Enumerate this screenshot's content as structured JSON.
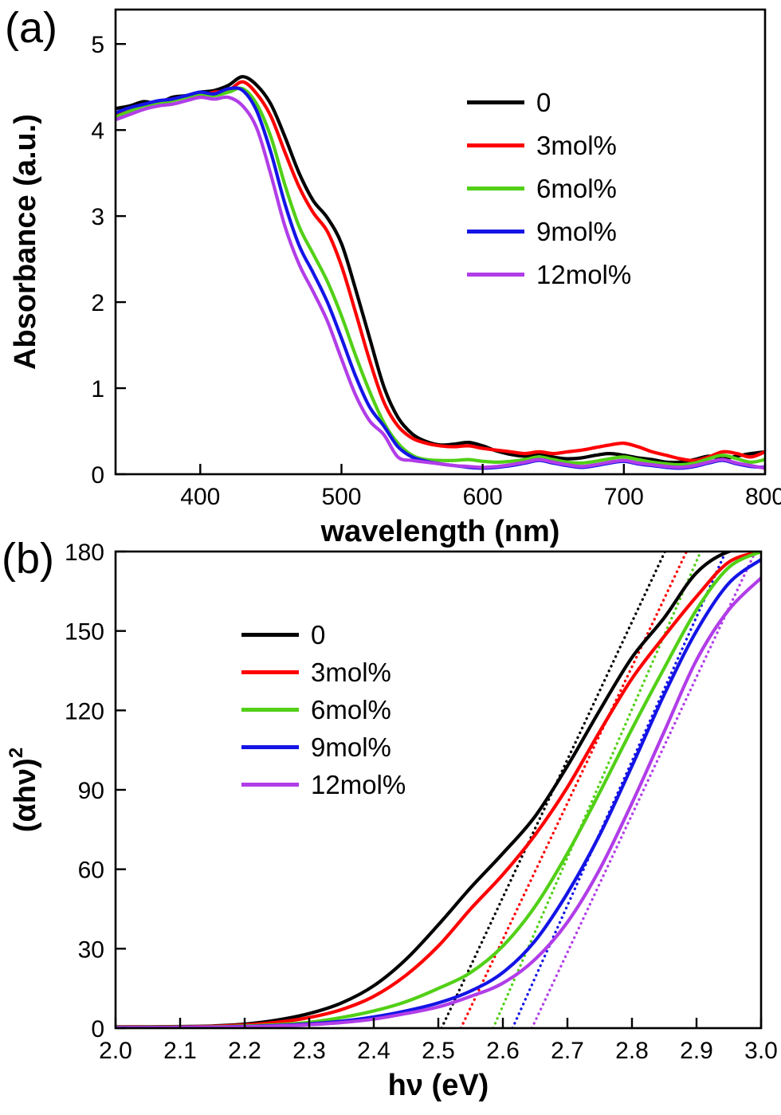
{
  "figure": {
    "panels": [
      {
        "label": "(a)"
      },
      {
        "label": "(b)"
      }
    ]
  },
  "chart_data": [
    {
      "type": "line",
      "panel": "a",
      "title": "",
      "xlabel": "wavelength (nm)",
      "ylabel": "Absorbance (a.u.)",
      "xlim": [
        340,
        800
      ],
      "ylim": [
        0,
        5.4
      ],
      "grid": false,
      "legend_position": "upper-right",
      "xticks": [
        400,
        500,
        600,
        700,
        800
      ],
      "xtick_labels": [
        "400",
        "500",
        "600",
        "700",
        "800"
      ],
      "yticks": [
        0,
        1,
        2,
        3,
        4,
        5
      ],
      "ytick_labels": [
        "0",
        "1",
        "2",
        "3",
        "4",
        "5"
      ],
      "x": [
        340,
        350,
        360,
        370,
        380,
        390,
        400,
        410,
        420,
        430,
        440,
        450,
        460,
        470,
        480,
        490,
        500,
        510,
        520,
        530,
        540,
        550,
        560,
        570,
        580,
        590,
        600,
        610,
        620,
        630,
        640,
        650,
        660,
        670,
        680,
        690,
        700,
        710,
        720,
        730,
        740,
        750,
        760,
        770,
        780,
        790,
        800
      ],
      "series": [
        {
          "name": "0",
          "color": "#000000",
          "y": [
            4.25,
            4.28,
            4.33,
            4.31,
            4.38,
            4.4,
            4.44,
            4.46,
            4.52,
            4.62,
            4.52,
            4.3,
            3.92,
            3.5,
            3.18,
            2.98,
            2.68,
            2.15,
            1.58,
            1.02,
            0.66,
            0.47,
            0.38,
            0.34,
            0.35,
            0.37,
            0.33,
            0.27,
            0.23,
            0.21,
            0.24,
            0.2,
            0.18,
            0.19,
            0.22,
            0.24,
            0.22,
            0.19,
            0.17,
            0.14,
            0.14,
            0.17,
            0.21,
            0.18,
            0.21,
            0.24,
            0.26
          ]
        },
        {
          "name": "3mol%",
          "color": "#ff0000",
          "y": [
            4.18,
            4.24,
            4.3,
            4.28,
            4.35,
            4.38,
            4.4,
            4.44,
            4.46,
            4.56,
            4.42,
            4.16,
            3.74,
            3.34,
            3.04,
            2.82,
            2.42,
            1.88,
            1.32,
            0.84,
            0.56,
            0.42,
            0.36,
            0.33,
            0.32,
            0.33,
            0.3,
            0.28,
            0.26,
            0.24,
            0.26,
            0.24,
            0.26,
            0.28,
            0.31,
            0.34,
            0.36,
            0.32,
            0.26,
            0.22,
            0.18,
            0.16,
            0.2,
            0.26,
            0.24,
            0.2,
            0.26
          ]
        },
        {
          "name": "6mol%",
          "color": "#52d017",
          "y": [
            4.15,
            4.22,
            4.28,
            4.3,
            4.34,
            4.38,
            4.42,
            4.4,
            4.44,
            4.48,
            4.3,
            3.92,
            3.36,
            2.88,
            2.56,
            2.24,
            1.84,
            1.38,
            0.96,
            0.6,
            0.36,
            0.22,
            0.17,
            0.16,
            0.16,
            0.17,
            0.15,
            0.14,
            0.15,
            0.17,
            0.2,
            0.17,
            0.14,
            0.13,
            0.15,
            0.18,
            0.2,
            0.17,
            0.14,
            0.12,
            0.11,
            0.13,
            0.18,
            0.22,
            0.18,
            0.14,
            0.17
          ]
        },
        {
          "name": "9mol%",
          "color": "#1414e6",
          "y": [
            4.2,
            4.26,
            4.3,
            4.34,
            4.36,
            4.4,
            4.44,
            4.42,
            4.48,
            4.46,
            4.22,
            3.74,
            3.14,
            2.66,
            2.34,
            2.0,
            1.58,
            1.14,
            0.78,
            0.56,
            0.32,
            0.2,
            0.15,
            0.12,
            0.1,
            0.08,
            0.07,
            0.08,
            0.1,
            0.13,
            0.16,
            0.13,
            0.1,
            0.08,
            0.1,
            0.13,
            0.15,
            0.12,
            0.1,
            0.08,
            0.07,
            0.09,
            0.13,
            0.16,
            0.12,
            0.09,
            0.08
          ]
        },
        {
          "name": "12mol%",
          "color": "#b13de8",
          "y": [
            4.12,
            4.18,
            4.24,
            4.28,
            4.3,
            4.34,
            4.38,
            4.36,
            4.38,
            4.28,
            4.02,
            3.48,
            2.88,
            2.44,
            2.12,
            1.78,
            1.34,
            0.92,
            0.62,
            0.46,
            0.2,
            0.16,
            0.14,
            0.12,
            0.1,
            0.09,
            0.08,
            0.09,
            0.11,
            0.14,
            0.17,
            0.14,
            0.11,
            0.09,
            0.11,
            0.14,
            0.16,
            0.13,
            0.11,
            0.09,
            0.08,
            0.1,
            0.14,
            0.17,
            0.13,
            0.1,
            0.07
          ]
        }
      ]
    },
    {
      "type": "line",
      "panel": "b",
      "title": "",
      "xlabel": "hν (eV)",
      "ylabel": "(αhν)",
      "ylabel_sup": "2",
      "xlim": [
        2.0,
        3.0
      ],
      "ylim": [
        0,
        180
      ],
      "grid": false,
      "legend_position": "upper-left",
      "xticks": [
        2.0,
        2.1,
        2.2,
        2.3,
        2.4,
        2.5,
        2.6,
        2.7,
        2.8,
        2.9,
        3.0
      ],
      "xtick_labels": [
        "2.0",
        "2.1",
        "2.2",
        "2.3",
        "2.4",
        "2.5",
        "2.6",
        "2.7",
        "2.8",
        "2.9",
        "3.0"
      ],
      "yticks": [
        0,
        30,
        60,
        90,
        120,
        150,
        180
      ],
      "ytick_labels": [
        "0",
        "30",
        "60",
        "90",
        "120",
        "150",
        "180"
      ],
      "x": [
        2.0,
        2.05,
        2.1,
        2.15,
        2.2,
        2.25,
        2.3,
        2.35,
        2.4,
        2.45,
        2.5,
        2.55,
        2.6,
        2.65,
        2.7,
        2.75,
        2.8,
        2.85,
        2.9,
        2.95,
        3.0
      ],
      "series": [
        {
          "name": "0",
          "color": "#000000",
          "y": [
            0.5,
            0.5,
            0.6,
            0.8,
            1.5,
            3,
            5.5,
            9.5,
            16,
            26,
            39,
            53,
            66,
            80,
            99,
            120,
            140,
            155,
            172,
            180,
            181
          ]
        },
        {
          "name": "3mol%",
          "color": "#ff0000",
          "y": [
            0.4,
            0.4,
            0.5,
            0.7,
            1.2,
            2.2,
            4,
            7,
            12,
            20,
            31,
            45,
            58,
            73,
            91,
            112,
            132,
            148,
            163,
            176,
            180
          ]
        },
        {
          "name": "6mol%",
          "color": "#52d017",
          "y": [
            0.3,
            0.3,
            0.4,
            0.5,
            0.8,
            1.3,
            2.2,
            4,
            6.5,
            10,
            15,
            21,
            31,
            46,
            66,
            89,
            113,
            136,
            158,
            174,
            180
          ]
        },
        {
          "name": "9mol%",
          "color": "#1414e6",
          "y": [
            0.2,
            0.2,
            0.3,
            0.4,
            0.6,
            1,
            1.6,
            2.6,
            4.2,
            6.5,
            9.5,
            14,
            21,
            33,
            51,
            73,
            99,
            126,
            150,
            168,
            177
          ]
        },
        {
          "name": "12mol%",
          "color": "#b13de8",
          "y": [
            0.2,
            0.2,
            0.3,
            0.4,
            0.5,
            0.8,
            1.3,
            2.1,
            3.4,
            5.5,
            8,
            12,
            17,
            26,
            40,
            60,
            85,
            112,
            139,
            158,
            170
          ]
        }
      ],
      "tangents": [
        {
          "name": "0",
          "color": "#000000",
          "x_intercept": 2.505,
          "slope": 520
        },
        {
          "name": "3mol%",
          "color": "#ff0000",
          "x_intercept": 2.535,
          "slope": 515
        },
        {
          "name": "6mol%",
          "color": "#52d017",
          "x_intercept": 2.585,
          "slope": 560
        },
        {
          "name": "9mol%",
          "color": "#1414e6",
          "x_intercept": 2.615,
          "slope": 545
        },
        {
          "name": "12mol%",
          "color": "#b13de8",
          "x_intercept": 2.645,
          "slope": 520
        }
      ]
    }
  ]
}
